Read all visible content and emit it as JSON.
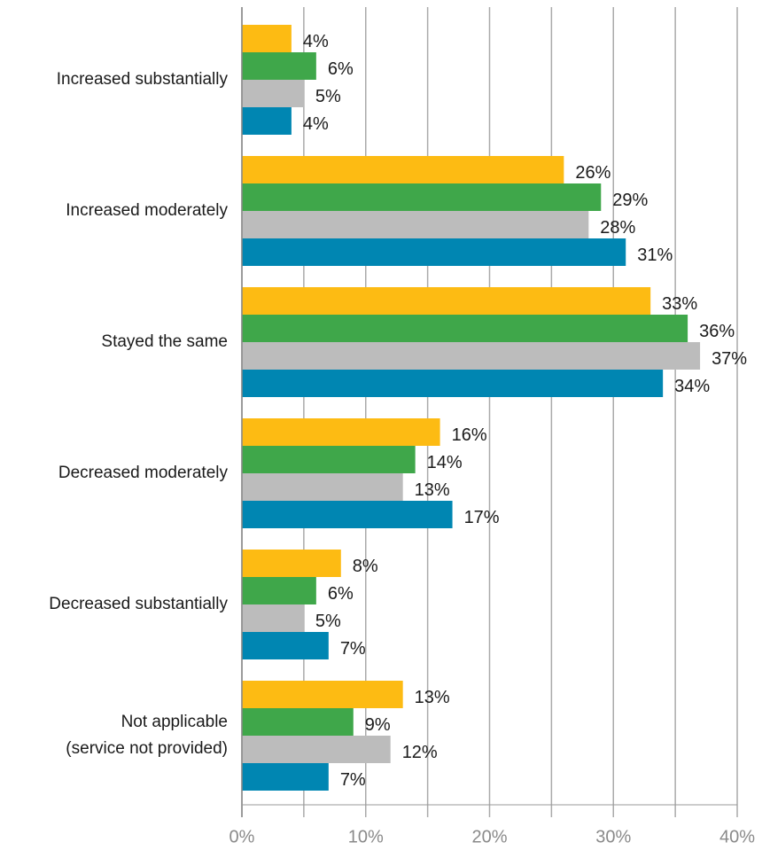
{
  "chart_data": {
    "type": "hbar",
    "categories": [
      "Increased substantially",
      "Increased moderately",
      "Stayed the same",
      "Decreased moderately",
      "Decreased substantially",
      "Not applicable\n(service not provided)"
    ],
    "series": [
      {
        "color": "#fdbb13",
        "values": [
          4,
          26,
          33,
          16,
          8,
          13
        ],
        "value_labels": [
          "4%",
          "26%",
          "33%",
          "16%",
          "8%",
          "13%"
        ]
      },
      {
        "color": "#3fa74a",
        "values": [
          6,
          29,
          36,
          14,
          6,
          9
        ],
        "value_labels": [
          "6%",
          "29%",
          "36%",
          "14%",
          "6%",
          "9%"
        ]
      },
      {
        "color": "#bcbcbc",
        "values": [
          5,
          28,
          37,
          13,
          5,
          12
        ],
        "value_labels": [
          "5%",
          "28%",
          "37%",
          "13%",
          "5%",
          "12%"
        ]
      },
      {
        "color": "#0086b2",
        "values": [
          4,
          31,
          34,
          17,
          7,
          7
        ],
        "value_labels": [
          "4%",
          "31%",
          "34%",
          "17%",
          "7%",
          "7%"
        ]
      }
    ],
    "xlim": [
      0,
      40
    ],
    "xticks": [
      {
        "value": 0,
        "label": "0%"
      },
      {
        "value": 10,
        "label": "10%"
      },
      {
        "value": 20,
        "label": "20%"
      },
      {
        "value": 30,
        "label": "30%"
      },
      {
        "value": 40,
        "label": "40%"
      }
    ],
    "xminorticks": [
      5,
      15,
      25,
      35
    ],
    "grid": true
  }
}
